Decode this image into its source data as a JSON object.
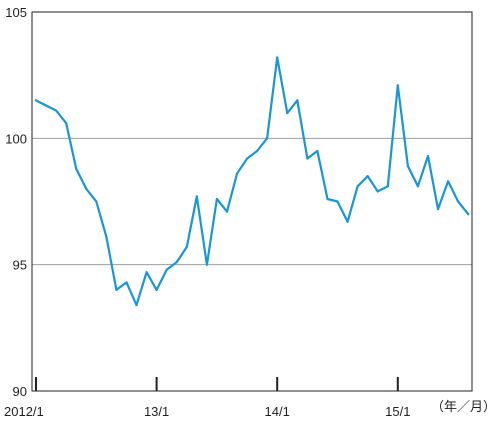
{
  "chart_data": {
    "type": "line",
    "title": "",
    "xlabel": "",
    "ylabel": "",
    "unit_label": "（年／月）",
    "ylim": [
      90,
      105
    ],
    "yticks": [
      90,
      95,
      100,
      105
    ],
    "xticks": [
      {
        "label": "2012/1",
        "index": 0
      },
      {
        "label": "13/1",
        "index": 12
      },
      {
        "label": "14/1",
        "index": 24
      },
      {
        "label": "15/1",
        "index": 36
      }
    ],
    "grid": "horizontal",
    "line_color": "#1a96d6",
    "series": [
      {
        "values": [
          101.5,
          101.3,
          101.1,
          100.6,
          98.8,
          98.0,
          97.5,
          96.1,
          94.0,
          94.3,
          93.4,
          94.7,
          94.0,
          94.8,
          95.1,
          95.7,
          97.7,
          95.0,
          97.6,
          97.1,
          98.6,
          99.2,
          99.5,
          100.0,
          103.2,
          101.0,
          101.5,
          99.2,
          99.5,
          97.6,
          97.5,
          96.7,
          98.1,
          98.5,
          97.9,
          98.1,
          102.1,
          98.9,
          98.1,
          99.3,
          97.2,
          98.3,
          97.5,
          97.0
        ]
      }
    ]
  }
}
